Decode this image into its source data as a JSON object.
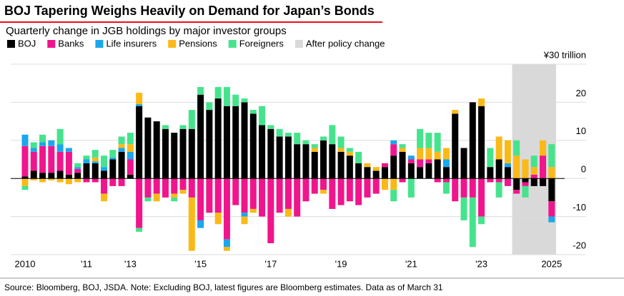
{
  "chart_data": {
    "type": "stacked_bar",
    "title": "BOJ Tapering Weighs Heavily on Demand for Japan’s Bonds",
    "subtitle": "Quarterly change in JGB holdings by major investor groups",
    "source": "Source: Bloomberg, BOJ, JSDA. Note: Excluding BOJ, latest figures are Bloomberg estimates. Data as of March 31",
    "categories": [
      "2010",
      null,
      null,
      null,
      null,
      null,
      null,
      "'11",
      null,
      null,
      null,
      null,
      "'13",
      null,
      null,
      null,
      null,
      null,
      null,
      null,
      "'15",
      null,
      null,
      null,
      null,
      null,
      null,
      null,
      "'17",
      null,
      null,
      null,
      null,
      null,
      null,
      null,
      "'19",
      null,
      null,
      null,
      null,
      null,
      null,
      null,
      "'21",
      null,
      null,
      null,
      null,
      null,
      null,
      null,
      "'23",
      null,
      null,
      null,
      null,
      null,
      null,
      null,
      "2025"
    ],
    "series": [
      {
        "name": "BOJ",
        "color": "#000000",
        "values": [
          0.5,
          2,
          1.5,
          1.5,
          2,
          1,
          1.5,
          4,
          4,
          2,
          5,
          7,
          1,
          19,
          16,
          15,
          13,
          12,
          13,
          13,
          22,
          18,
          21,
          19,
          19,
          20,
          17,
          14,
          13,
          11,
          11,
          9,
          9,
          7,
          10,
          9,
          7,
          6,
          4,
          3,
          2,
          3,
          6,
          7,
          4,
          3,
          4,
          5,
          3,
          17,
          8,
          20,
          19,
          3,
          5,
          3,
          -3,
          -1,
          -2,
          -2,
          -6
        ]
      },
      {
        "name": "Banks",
        "color": "#f0158c",
        "values": [
          8,
          5,
          7,
          7,
          5,
          6,
          1,
          -1,
          -1,
          -4,
          -2,
          -2,
          4,
          -13,
          -5,
          -4,
          -5,
          -4,
          -3,
          -5,
          -11,
          -9,
          -9,
          -16,
          -7,
          -9,
          -8,
          -10,
          -17,
          -9,
          -8,
          -10,
          -6,
          -4,
          -3,
          -8,
          -7,
          -6,
          -7,
          -5,
          -4,
          1,
          3,
          -1,
          1,
          2,
          1,
          -1,
          -1,
          -6,
          -5,
          -5,
          -10,
          -1,
          -1,
          -2,
          -1,
          -1,
          1,
          6,
          -4
        ]
      },
      {
        "name": "Life insurers",
        "color": "#1aa7ec",
        "values": [
          3,
          1,
          1,
          1.5,
          2,
          1,
          0.5,
          1,
          0.5,
          1,
          0.5,
          1,
          2,
          0.5,
          0,
          0,
          0,
          0,
          0,
          0,
          -2,
          0,
          0,
          -2,
          0,
          -1,
          0,
          0,
          0,
          0,
          0,
          0,
          0,
          0,
          0,
          0,
          0,
          0,
          0,
          0,
          0,
          0,
          1,
          0,
          1,
          0,
          0,
          0,
          2,
          0,
          0,
          0,
          0,
          0,
          0,
          1,
          0,
          0,
          0,
          0,
          -1.5
        ]
      },
      {
        "name": "Pensions",
        "color": "#fbb918",
        "values": [
          -2,
          -0.5,
          -1,
          -0.5,
          -1,
          -1.5,
          -1,
          0,
          1,
          -2,
          0,
          1,
          2,
          3,
          0,
          -2,
          0,
          -1,
          -1,
          -14,
          0,
          0,
          -3,
          -1,
          0,
          -2,
          -1,
          0,
          0,
          0,
          -2,
          0,
          0,
          1,
          -1,
          0,
          1,
          1,
          0,
          1,
          1,
          -3,
          -3,
          1,
          0,
          3,
          3,
          2,
          3,
          1,
          0,
          0,
          2,
          0,
          6,
          6,
          6,
          5,
          2,
          4,
          3
        ]
      },
      {
        "name": "Foreigners",
        "color": "#46e38d",
        "values": [
          -1,
          1.5,
          2,
          0,
          4,
          0,
          1,
          1,
          2,
          3,
          2,
          2,
          3,
          -1,
          -1,
          0,
          1,
          -1,
          1,
          5,
          2,
          2,
          3,
          5,
          3,
          1,
          1,
          5,
          1,
          2,
          1,
          3,
          1,
          1,
          1,
          5,
          3,
          1,
          3,
          0,
          0,
          0,
          -3,
          1,
          -5,
          5,
          4,
          5,
          -3,
          0,
          -6,
          -13,
          -2,
          5,
          -4,
          0,
          4,
          -3,
          3,
          0,
          6
        ]
      }
    ],
    "shade": {
      "name": "After policy change",
      "color": "#d9d9d9",
      "from": 56,
      "to": 60
    },
    "ylim": [
      -20,
      30
    ],
    "yticks": [
      -20,
      -10,
      0,
      10,
      20,
      {
        "value": 30,
        "label": "¥30 trillion"
      }
    ],
    "grid": true
  }
}
